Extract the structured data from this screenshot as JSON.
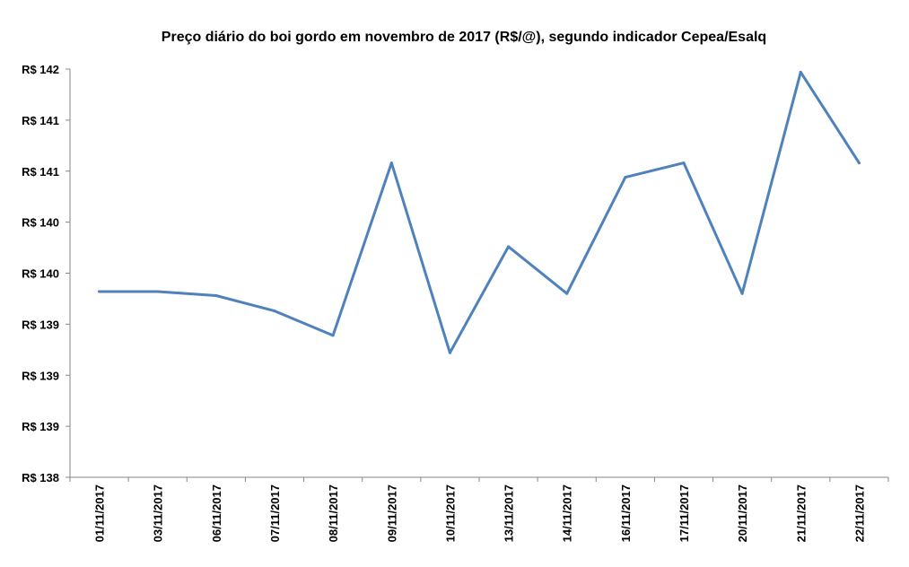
{
  "chart_data": {
    "type": "line",
    "title": "Preço diário do boi gordo em novembro de 2017 (R$/@), segundo indicador Cepea/Esalq",
    "xlabel": "",
    "ylabel": "",
    "categories": [
      "01/11/2017",
      "03/11/2017",
      "06/11/2017",
      "07/11/2017",
      "08/11/2017",
      "09/11/2017",
      "10/11/2017",
      "13/11/2017",
      "14/11/2017",
      "16/11/2017",
      "17/11/2017",
      "20/11/2017",
      "21/11/2017",
      "22/11/2017"
    ],
    "series": [
      {
        "values": [
          139.82,
          139.82,
          139.78,
          139.63,
          139.39,
          141.08,
          139.22,
          140.26,
          139.8,
          140.94,
          141.08,
          139.8,
          141.97,
          141.08
        ]
      }
    ],
    "ylim": [
      138.0,
      142.0
    ],
    "y_ticks": [
      138.0,
      138.5,
      139.0,
      139.5,
      140.0,
      140.5,
      141.0,
      141.5,
      142.0
    ],
    "y_tick_labels": [
      "R$ 138",
      "R$ 139",
      "R$ 139",
      "R$ 139",
      "R$ 140",
      "R$ 140",
      "R$ 141",
      "R$ 141",
      "R$ 142"
    ],
    "line_color": "#4F81BD",
    "grid": false,
    "legend": "none"
  }
}
